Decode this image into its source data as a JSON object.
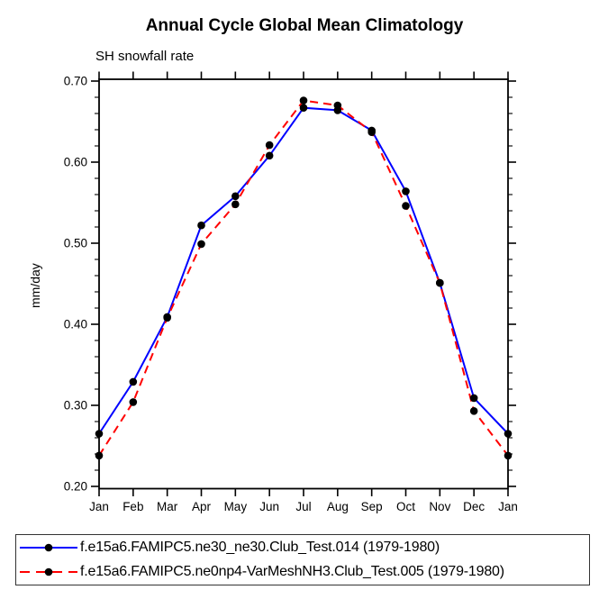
{
  "chart_data": {
    "type": "line",
    "title": "Annual Cycle Global Mean Climatology",
    "subtitle": "SH snowfall rate",
    "xlabel": "",
    "ylabel": "mm/day",
    "x_tick_labels": [
      "Jan",
      "Feb",
      "Mar",
      "Apr",
      "May",
      "Jun",
      "Jul",
      "Aug",
      "Sep",
      "Oct",
      "Nov",
      "Dec",
      "Jan"
    ],
    "y_tick_labels": [
      "0.20",
      "0.30",
      "0.40",
      "0.50",
      "0.60",
      "0.70"
    ],
    "ylim": [
      0.2,
      0.7
    ],
    "y_major_step": 0.1,
    "y_minor_step": 0.02,
    "grid": false,
    "legend_position": "bottom",
    "axis_color": "#000000",
    "marker_color": "#000000",
    "series": [
      {
        "name": "f.e15a6.FAMIPC5.ne30_ne30.Club_Test.014 (1979-1980)",
        "color": "#0000ff",
        "style": "solid",
        "marker": "filled-circle",
        "values": [
          0.265,
          0.329,
          0.409,
          0.522,
          0.558,
          0.608,
          0.667,
          0.664,
          0.639,
          0.564,
          0.451,
          0.309,
          0.265
        ]
      },
      {
        "name": "f.e15a6.FAMIPC5.ne0np4-VarMeshNH3.Club_Test.005 (1979-1980)",
        "color": "#ff0000",
        "style": "dashed",
        "marker": "filled-circle",
        "values": [
          0.238,
          0.304,
          0.408,
          0.499,
          0.548,
          0.621,
          0.676,
          0.67,
          0.637,
          0.546,
          0.451,
          0.293,
          0.238
        ]
      }
    ]
  }
}
